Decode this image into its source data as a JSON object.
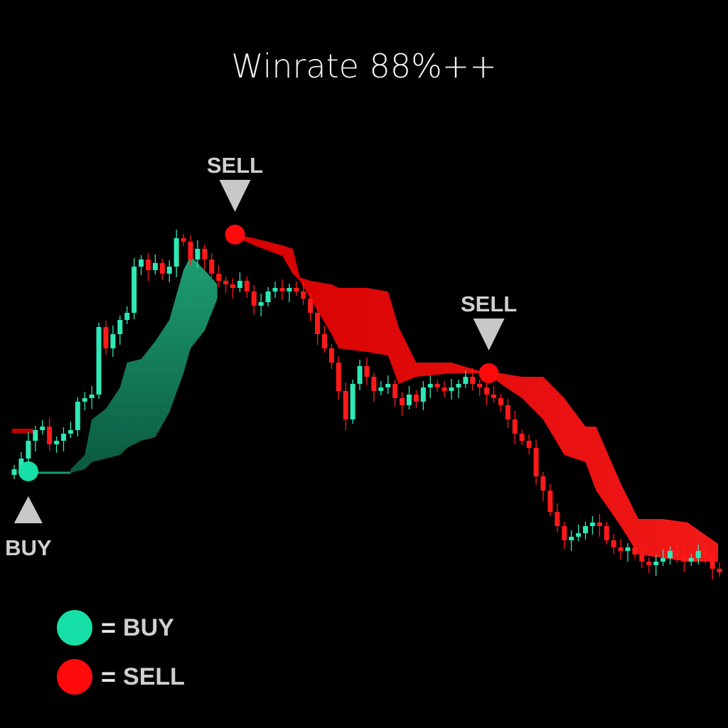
{
  "chart_data": {
    "type": "candlestick",
    "title": "Winrate 88%++",
    "xlabel": "",
    "ylabel": "",
    "grid": false,
    "colors": {
      "up": "#2ee8b6",
      "down": "#ff1a1a",
      "buy": "#16e0a8",
      "sell": "#ff0a0a",
      "label": "#d0d0d0",
      "background": "#000000"
    },
    "ylim": [
      0,
      540
    ],
    "closes": [
      180,
      195,
      220,
      235,
      240,
      215,
      220,
      230,
      235,
      275,
      280,
      285,
      380,
      350,
      370,
      390,
      400,
      465,
      475,
      460,
      470,
      455,
      465,
      505,
      500,
      475,
      490,
      475,
      455,
      445,
      440,
      435,
      445,
      430,
      410,
      415,
      430,
      435,
      430,
      435,
      430,
      420,
      400,
      370,
      350,
      330,
      290,
      250,
      300,
      325,
      310,
      290,
      295,
      300,
      280,
      270,
      285,
      275,
      295,
      300,
      295,
      290,
      295,
      300,
      310,
      300,
      295,
      285,
      280,
      270,
      250,
      230,
      220,
      210,
      170,
      150,
      120,
      100,
      80,
      85,
      90,
      100,
      105,
      100,
      80,
      70,
      65,
      70,
      60,
      50,
      45,
      50,
      55,
      65,
      60,
      50,
      55,
      65,
      60,
      40,
      35
    ],
    "bull_cloud": {
      "x": [
        8,
        10,
        11,
        13,
        15,
        16,
        18,
        20,
        22,
        24,
        25,
        27,
        28.8
      ],
      "upper": [
        180,
        200,
        250,
        265,
        295,
        330,
        335,
        360,
        390,
        460,
        480,
        460,
        440
      ],
      "lower": [
        175,
        180,
        190,
        195,
        200,
        210,
        220,
        225,
        260,
        315,
        350,
        375,
        420
      ]
    },
    "bear_cloud": {
      "x": [
        31.3,
        34,
        38,
        39.5,
        40.5,
        42,
        45,
        46,
        50,
        53,
        54.5,
        57,
        62,
        67,
        69,
        72,
        75,
        78,
        81,
        82.5,
        86,
        88.5,
        92,
        95.5,
        99.8
      ],
      "upper": [
        510,
        505,
        495,
        490,
        450,
        445,
        440,
        435,
        435,
        430,
        380,
        330,
        330,
        315,
        315,
        310,
        310,
        280,
        240,
        240,
        160,
        110,
        110,
        105,
        75
      ],
      "lower": [
        507,
        495,
        480,
        455,
        445,
        420,
        370,
        350,
        345,
        340,
        300,
        310,
        315,
        315,
        300,
        280,
        250,
        200,
        190,
        150,
        100,
        60,
        55,
        50,
        50
      ]
    },
    "signals": [
      {
        "type": "BUY",
        "label": "BUY",
        "x": 2,
        "y": 177
      },
      {
        "type": "SELL",
        "label": "SELL",
        "x": 31.3,
        "y": 510
      },
      {
        "type": "SELL",
        "label": "SELL",
        "x": 67.3,
        "y": 315
      }
    ]
  },
  "legend": {
    "equals": "=",
    "buy_label": "BUY",
    "sell_label": "SELL"
  }
}
